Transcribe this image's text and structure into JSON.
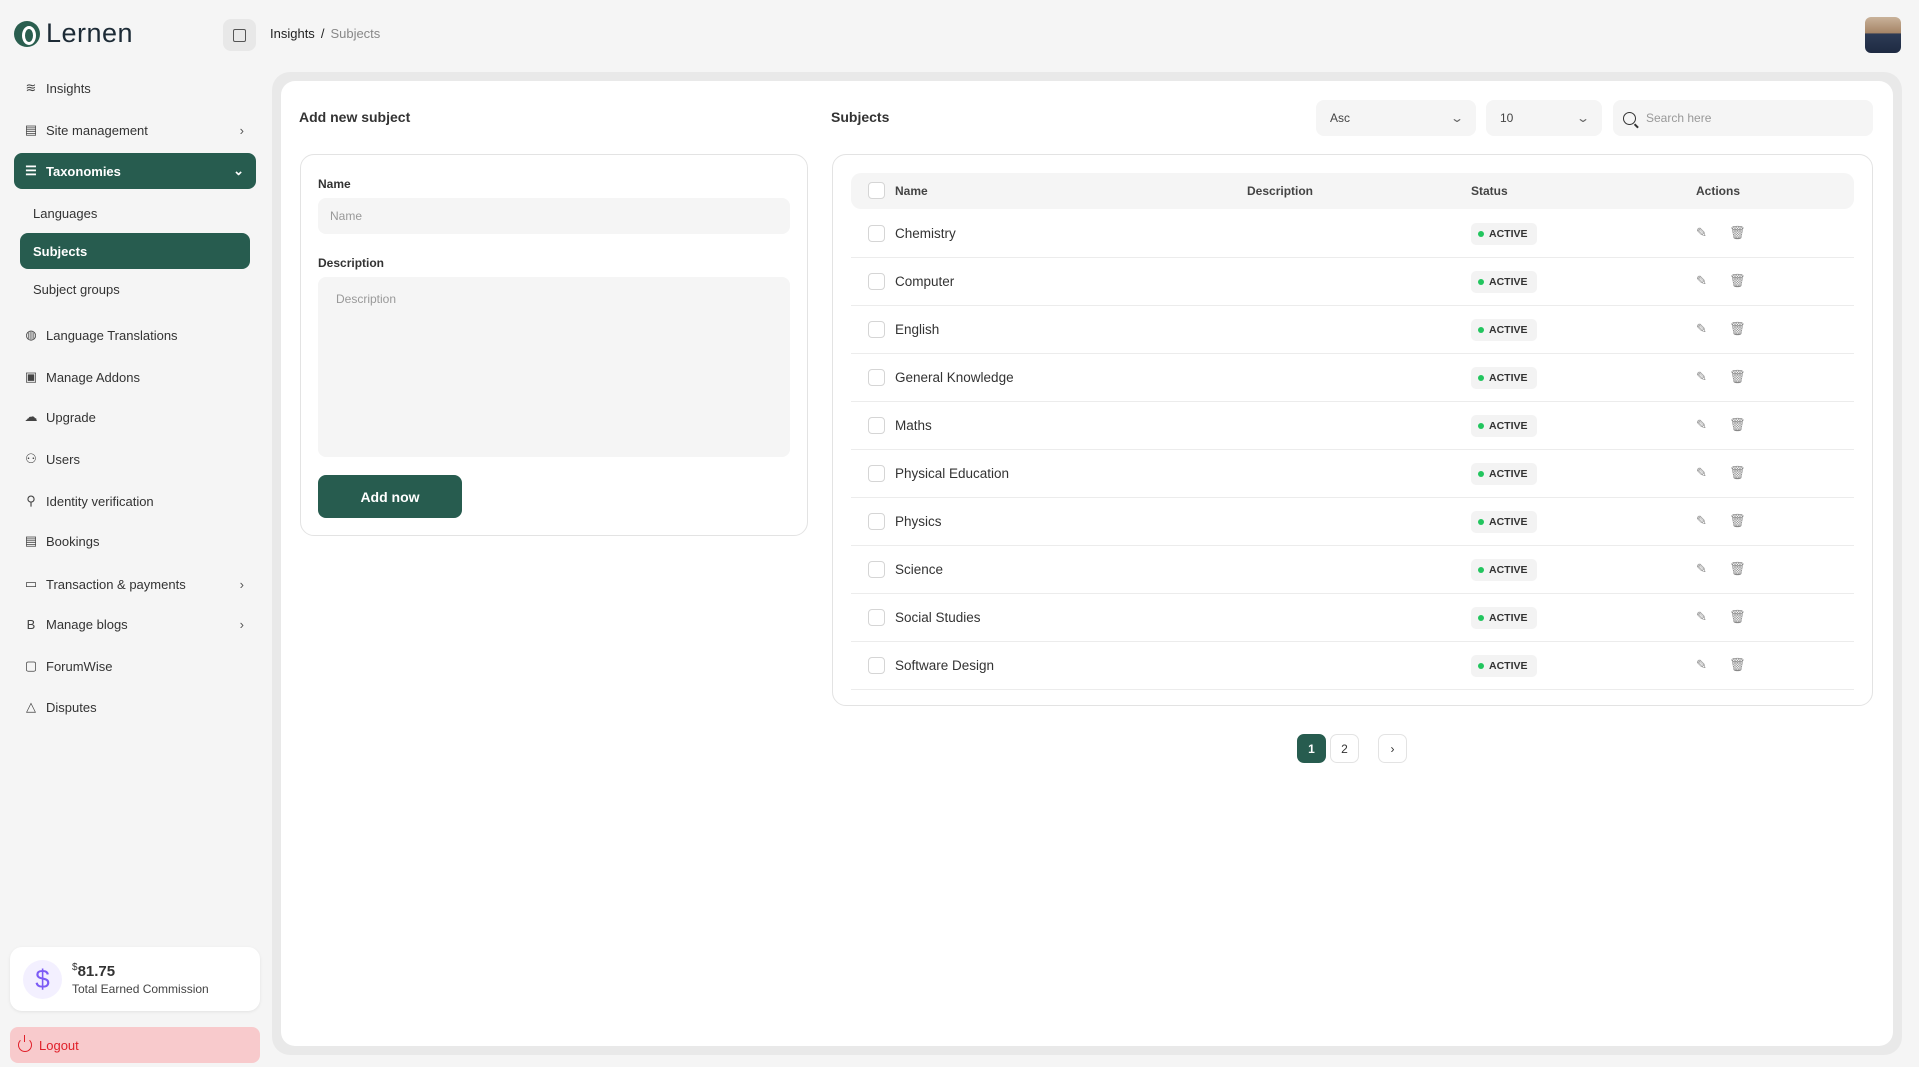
{
  "app": {
    "name": "Lernen"
  },
  "breadcrumb": {
    "parent": "Insights",
    "separator": "/",
    "current": "Subjects"
  },
  "sidebar": {
    "items": [
      {
        "label": "Insights",
        "icon": "layers-icon"
      },
      {
        "label": "Site management",
        "icon": "layout-icon"
      },
      {
        "label": "Taxonomies",
        "icon": "database-icon"
      },
      {
        "label": "Language Translations",
        "icon": "globe-icon"
      },
      {
        "label": "Manage Addons",
        "icon": "folder-plus-icon"
      },
      {
        "label": "Upgrade",
        "icon": "cloud-upload-icon"
      },
      {
        "label": "Users",
        "icon": "users-icon"
      },
      {
        "label": "Identity verification",
        "icon": "user-check-icon"
      },
      {
        "label": "Bookings",
        "icon": "file-text-icon"
      },
      {
        "label": "Transaction & payments",
        "icon": "credit-card-icon"
      },
      {
        "label": "Manage blogs",
        "icon": "bold-icon"
      },
      {
        "label": "ForumWise",
        "icon": "message-icon"
      },
      {
        "label": "Disputes",
        "icon": "alert-triangle-icon"
      }
    ],
    "taxonomies_sub": [
      "Languages",
      "Subjects",
      "Subject groups"
    ],
    "commission": {
      "currency": "$",
      "amount": "81.75",
      "label": "Total Earned Commission"
    },
    "logout": "Logout"
  },
  "form": {
    "title": "Add new subject",
    "name_label": "Name",
    "name_placeholder": "Name",
    "description_label": "Description",
    "description_placeholder": "Description",
    "submit": "Add now"
  },
  "subjects": {
    "title": "Subjects",
    "sort": "Asc",
    "per_page": "10",
    "search_placeholder": "Search here",
    "columns": [
      "Name",
      "Description",
      "Status",
      "Actions"
    ],
    "rows": [
      {
        "name": "Chemistry",
        "status": "ACTIVE"
      },
      {
        "name": "Computer",
        "status": "ACTIVE"
      },
      {
        "name": "English",
        "status": "ACTIVE"
      },
      {
        "name": "General Knowledge",
        "status": "ACTIVE"
      },
      {
        "name": "Maths",
        "status": "ACTIVE"
      },
      {
        "name": "Physical Education",
        "status": "ACTIVE"
      },
      {
        "name": "Physics",
        "status": "ACTIVE"
      },
      {
        "name": "Science",
        "status": "ACTIVE"
      },
      {
        "name": "Social Studies",
        "status": "ACTIVE"
      },
      {
        "name": "Software Design",
        "status": "ACTIVE"
      }
    ],
    "pagination": {
      "pages": [
        "1",
        "2"
      ],
      "current": "1",
      "next": "›"
    }
  },
  "colors": {
    "brand": "#275c4f",
    "active_dot": "#22c55e",
    "logout_bg": "#f8cacc",
    "logout_text": "#e0202a"
  }
}
